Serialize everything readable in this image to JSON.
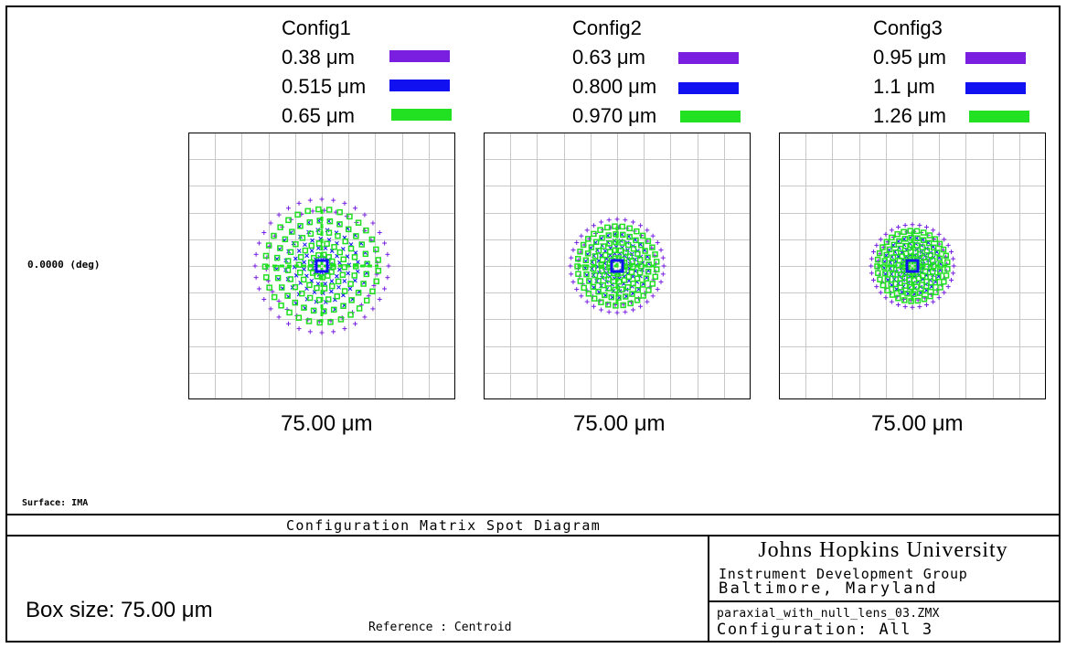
{
  "field_label": "0.0000 (deg)",
  "surface_label": "Surface: IMA",
  "title": "Configuration Matrix Spot Diagram",
  "institution": {
    "name": "Johns Hopkins University",
    "group": "Instrument Development Group",
    "location": "Baltimore, Maryland"
  },
  "file": {
    "name": "paraxial_with_null_lens_03.ZMX",
    "configuration": "Configuration: All 3"
  },
  "box_size": "Box size: 75.00 μm",
  "reference": "Reference  : Centroid",
  "colors": {
    "wave1": "#7a1fe0",
    "wave2": "#1010f0",
    "wave3": "#22e022",
    "grid": "#c8c8c8"
  },
  "configs": [
    {
      "name": "Config1",
      "wavelengths": [
        "0.38 μm",
        "0.515 μm",
        "0.65 μm"
      ],
      "scale_label": "75.00 μm",
      "spot_radius_fraction": 0.5
    },
    {
      "name": "Config2",
      "wavelengths": [
        "0.63 μm",
        "0.800 μm",
        "0.970 μm"
      ],
      "scale_label": "75.00 μm",
      "spot_radius_fraction": 0.35
    },
    {
      "name": "Config3",
      "wavelengths": [
        "0.95 μm",
        "1.1 μm",
        "1.26 μm"
      ],
      "scale_label": "75.00 μm",
      "spot_radius_fraction": 0.31
    }
  ]
}
